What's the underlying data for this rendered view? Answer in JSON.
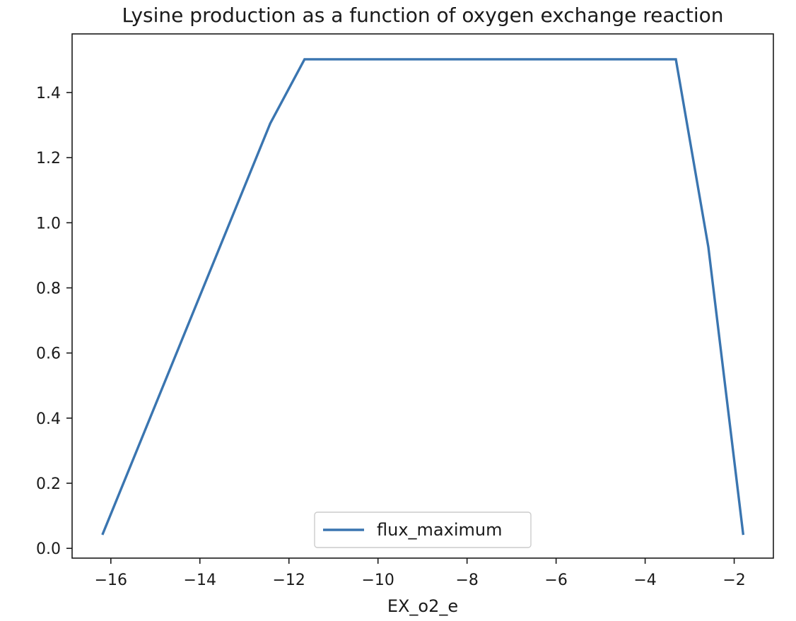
{
  "chart_data": {
    "type": "line",
    "title": "Lysine production as a function of oxygen exchange reaction",
    "xlabel": "EX_o2_e",
    "ylabel": "",
    "xlim": [
      -16.87,
      -1.12
    ],
    "ylim": [
      -0.03,
      1.58
    ],
    "xticks": [
      -16,
      -14,
      -12,
      -10,
      -8,
      -6,
      -4,
      -2
    ],
    "xtick_labels": [
      "−16",
      "−14",
      "−12",
      "−10",
      "−8",
      "−6",
      "−4",
      "−2"
    ],
    "yticks": [
      0.0,
      0.2,
      0.4,
      0.6,
      0.8,
      1.0,
      1.2,
      1.4
    ],
    "ytick_labels": [
      "0.0",
      "0.2",
      "0.4",
      "0.6",
      "0.8",
      "1.0",
      "1.2",
      "1.4"
    ],
    "grid": false,
    "legend_position": "lower center",
    "series": [
      {
        "name": "flux_maximum",
        "color": "#3a75b0",
        "x": [
          -16.18,
          -12.42,
          -11.65,
          -10.83,
          -10.0,
          -9.18,
          -8.36,
          -7.53,
          -6.71,
          -5.88,
          -5.06,
          -4.24,
          -3.31,
          -2.58,
          -1.8
        ],
        "y": [
          0.045,
          1.305,
          1.502,
          1.502,
          1.502,
          1.502,
          1.502,
          1.502,
          1.502,
          1.502,
          1.502,
          1.502,
          1.502,
          0.925,
          0.045
        ]
      }
    ]
  }
}
